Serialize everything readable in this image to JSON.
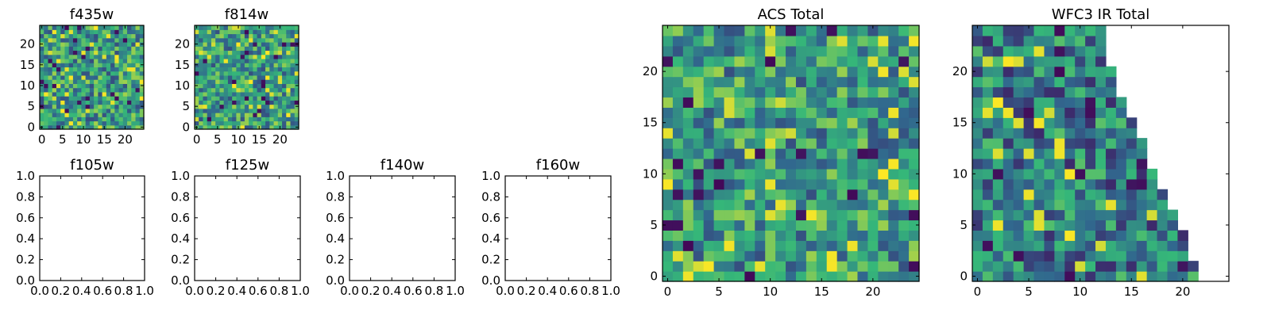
{
  "colormap": [
    "#440154",
    "#31688e",
    "#35b779",
    "#fde725"
  ],
  "chart_data": [
    {
      "type": "heatmap",
      "title": "f435w",
      "xticks": [
        "0",
        "5",
        "10",
        "15",
        "20"
      ],
      "yticks": [
        "0",
        "5",
        "10",
        "15",
        "20"
      ],
      "grid_size": 25,
      "value_range": [
        0,
        1
      ],
      "description": "random noise image"
    },
    {
      "type": "heatmap",
      "title": "f814w",
      "xticks": [
        "0",
        "5",
        "10",
        "15",
        "20"
      ],
      "yticks": [
        "0",
        "5",
        "10",
        "15",
        "20"
      ],
      "grid_size": 25,
      "value_range": [
        0,
        1
      ],
      "description": "random noise image"
    },
    {
      "type": "scatter",
      "title": "f105w",
      "xticks": [
        "0.0",
        "0.2",
        "0.4",
        "0.6",
        "0.8",
        "1.0"
      ],
      "yticks": [
        "0.0",
        "0.2",
        "0.4",
        "0.6",
        "0.8",
        "1.0"
      ],
      "xlim": [
        0,
        1
      ],
      "ylim": [
        0,
        1
      ],
      "values": []
    },
    {
      "type": "scatter",
      "title": "f125w",
      "xticks": [
        "0.0",
        "0.2",
        "0.4",
        "0.6",
        "0.8",
        "1.0"
      ],
      "yticks": [
        "0.0",
        "0.2",
        "0.4",
        "0.6",
        "0.8",
        "1.0"
      ],
      "xlim": [
        0,
        1
      ],
      "ylim": [
        0,
        1
      ],
      "values": []
    },
    {
      "type": "scatter",
      "title": "f140w",
      "xticks": [
        "0.0",
        "0.2",
        "0.4",
        "0.6",
        "0.8",
        "1.0"
      ],
      "yticks": [
        "0.0",
        "0.2",
        "0.4",
        "0.6",
        "0.8",
        "1.0"
      ],
      "xlim": [
        0,
        1
      ],
      "ylim": [
        0,
        1
      ],
      "values": []
    },
    {
      "type": "scatter",
      "title": "f160w",
      "xticks": [
        "0.0",
        "0.2",
        "0.4",
        "0.6",
        "0.8",
        "1.0"
      ],
      "yticks": [
        "0.0",
        "0.2",
        "0.4",
        "0.6",
        "0.8",
        "1.0"
      ],
      "xlim": [
        0,
        1
      ],
      "ylim": [
        0,
        1
      ],
      "values": []
    },
    {
      "type": "heatmap",
      "title": "ACS Total",
      "xticks": [
        "0",
        "5",
        "10",
        "15",
        "20"
      ],
      "yticks": [
        "0",
        "5",
        "10",
        "15",
        "20"
      ],
      "grid_size": 25,
      "value_range": [
        0,
        1
      ],
      "description": "random noise image"
    },
    {
      "type": "heatmap",
      "title": "WFC3 IR Total",
      "xticks": [
        "0",
        "5",
        "10",
        "15",
        "20"
      ],
      "yticks": [
        "0",
        "5",
        "10",
        "15",
        "20"
      ],
      "grid_size": 25,
      "value_range": [
        0,
        1
      ],
      "row_widths": [
        22,
        22,
        21,
        21,
        21,
        20,
        20,
        19,
        19,
        18,
        18,
        17,
        17,
        17,
        16,
        16,
        15,
        15,
        14,
        14,
        14,
        13,
        13,
        13,
        13
      ],
      "description": "noise image with blank triangular upper-right region"
    }
  ]
}
